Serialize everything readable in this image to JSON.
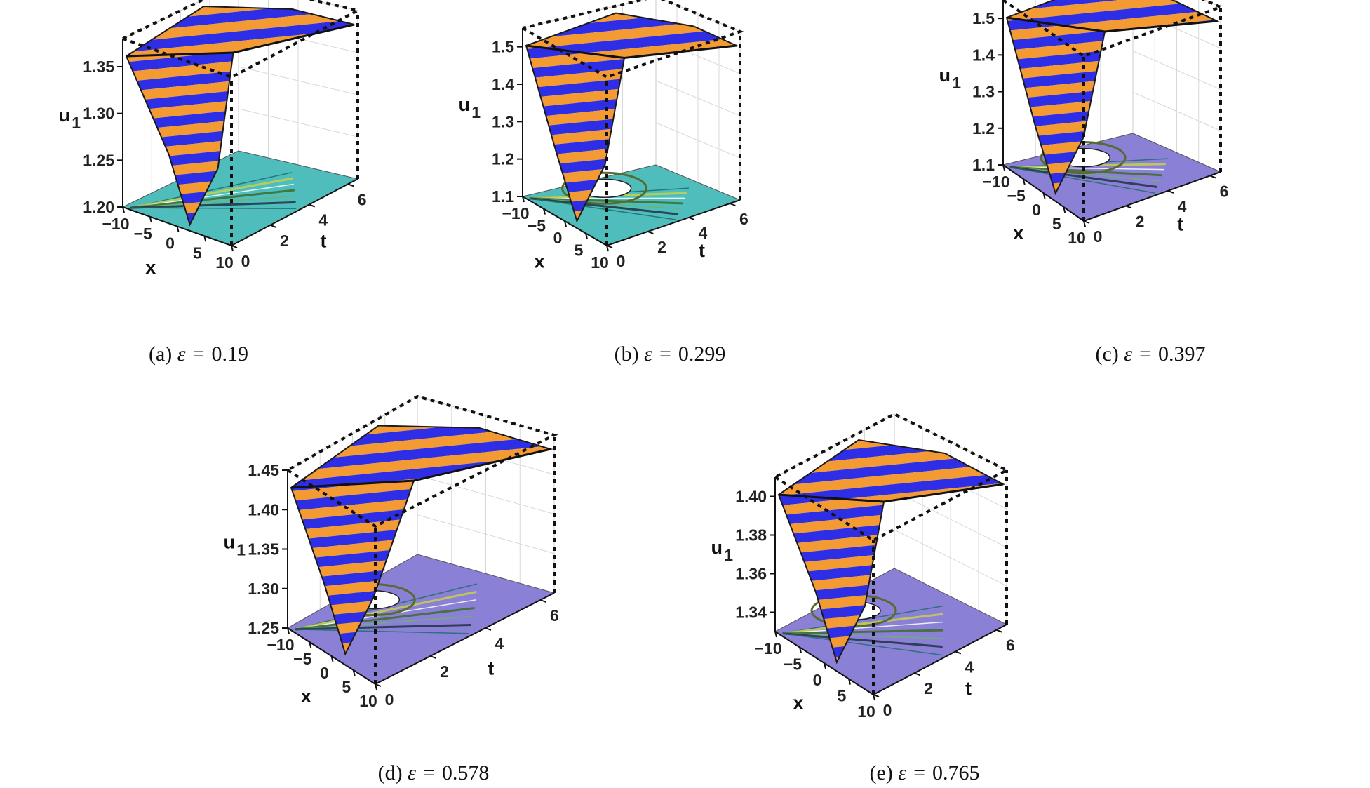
{
  "figure": {
    "colors": {
      "orange": "#f39a33",
      "blue": "#2e2ee6",
      "floor": "#4fbdbb",
      "floor_alt": "#8a80d6",
      "axis": "#111111"
    },
    "epsilon_symbol": "ε",
    "equals": "="
  },
  "chart_data": [
    {
      "type": "surface3d",
      "label": "(a)",
      "epsilon": "0.19",
      "xlabel": "x",
      "tlabel": "t",
      "zlabel_main": "u",
      "zlabel_sub": "1",
      "x_ticks": [
        "−10",
        "−5",
        "0",
        "5",
        "10"
      ],
      "t_ticks": [
        "0",
        "2",
        "4",
        "6"
      ],
      "z_ticks": [
        "1.20",
        "1.25",
        "1.30",
        "1.35"
      ],
      "xlim": [
        -10,
        10
      ],
      "tlim": [
        0,
        6.5
      ],
      "zlim": [
        1.2,
        1.38
      ],
      "floor": "teal"
    },
    {
      "type": "surface3d",
      "label": "(b)",
      "epsilon": "0.299",
      "xlabel": "x",
      "tlabel": "t",
      "zlabel_main": "u",
      "zlabel_sub": "1",
      "x_ticks": [
        "−10",
        "−5",
        "0",
        "5",
        "10"
      ],
      "t_ticks": [
        "0",
        "2",
        "4",
        "6"
      ],
      "z_ticks": [
        "1.1",
        "1.2",
        "1.3",
        "1.4",
        "1.5"
      ],
      "xlim": [
        -10,
        10
      ],
      "tlim": [
        0,
        6.5
      ],
      "zlim": [
        1.1,
        1.55
      ],
      "floor": "teal"
    },
    {
      "type": "surface3d",
      "label": "(c)",
      "epsilon": "0.397",
      "xlabel": "x",
      "tlabel": "t",
      "zlabel_main": "u",
      "zlabel_sub": "1",
      "x_ticks": [
        "−10",
        "−5",
        "0",
        "5",
        "10"
      ],
      "t_ticks": [
        "0",
        "2",
        "4",
        "6"
      ],
      "z_ticks": [
        "1.1",
        "1.2",
        "1.3",
        "1.4",
        "1.5"
      ],
      "xlim": [
        -10,
        10
      ],
      "tlim": [
        0,
        6.5
      ],
      "zlim": [
        1.1,
        1.55
      ],
      "floor": "purple"
    },
    {
      "type": "surface3d",
      "label": "(d)",
      "epsilon": "0.578",
      "xlabel": "x",
      "tlabel": "t",
      "zlabel_main": "u",
      "zlabel_sub": "1",
      "x_ticks": [
        "−10",
        "−5",
        "0",
        "5",
        "10"
      ],
      "t_ticks": [
        "0",
        "2",
        "4",
        "6"
      ],
      "z_ticks": [
        "1.25",
        "1.30",
        "1.35",
        "1.40",
        "1.45"
      ],
      "xlim": [
        -10,
        10
      ],
      "tlim": [
        0,
        6.5
      ],
      "zlim": [
        1.25,
        1.45
      ],
      "floor": "purple"
    },
    {
      "type": "surface3d",
      "label": "(e)",
      "epsilon": "0.765",
      "xlabel": "x",
      "tlabel": "t",
      "zlabel_main": "u",
      "zlabel_sub": "1",
      "x_ticks": [
        "−10",
        "−5",
        "0",
        "5",
        "10"
      ],
      "t_ticks": [
        "0",
        "2",
        "4",
        "6"
      ],
      "z_ticks": [
        "1.34",
        "1.36",
        "1.38",
        "1.40"
      ],
      "xlim": [
        -10,
        10
      ],
      "tlim": [
        0,
        6.5
      ],
      "zlim": [
        1.33,
        1.41
      ],
      "floor": "purple"
    }
  ]
}
